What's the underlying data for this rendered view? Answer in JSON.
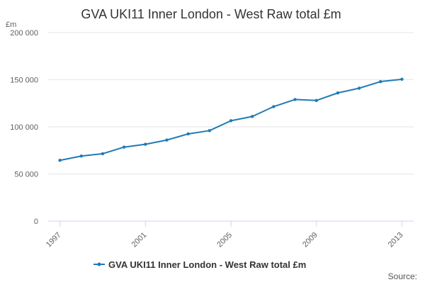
{
  "chart_data": {
    "type": "line",
    "title": "GVA UKI11 Inner London - West Raw total £m",
    "ylabel": "£m",
    "xlabel": "",
    "x": [
      1997,
      1998,
      1999,
      2000,
      2001,
      2002,
      2003,
      2004,
      2005,
      2006,
      2007,
      2008,
      2009,
      2010,
      2011,
      2012,
      2013
    ],
    "x_tick_labels": [
      "1997",
      "2001",
      "2005",
      "2009",
      "2013"
    ],
    "x_tick_values": [
      1997,
      2001,
      2005,
      2009,
      2013
    ],
    "y_tick_labels": [
      "0",
      "50 000",
      "100 000",
      "150 000",
      "200 000"
    ],
    "y_tick_values": [
      0,
      50000,
      100000,
      150000,
      200000
    ],
    "ylim": [
      0,
      200000
    ],
    "xlim": [
      1997,
      2013
    ],
    "grid": true,
    "legend_position": "bottom",
    "series": [
      {
        "name": "GVA UKI11 Inner London - West Raw total £m",
        "color": "#1f7bb5",
        "values": [
          64500,
          69000,
          71500,
          78500,
          81500,
          86000,
          92500,
          96000,
          106500,
          111000,
          121500,
          129000,
          128000,
          136000,
          141000,
          148000,
          150500
        ]
      }
    ],
    "credits": "Source:"
  }
}
